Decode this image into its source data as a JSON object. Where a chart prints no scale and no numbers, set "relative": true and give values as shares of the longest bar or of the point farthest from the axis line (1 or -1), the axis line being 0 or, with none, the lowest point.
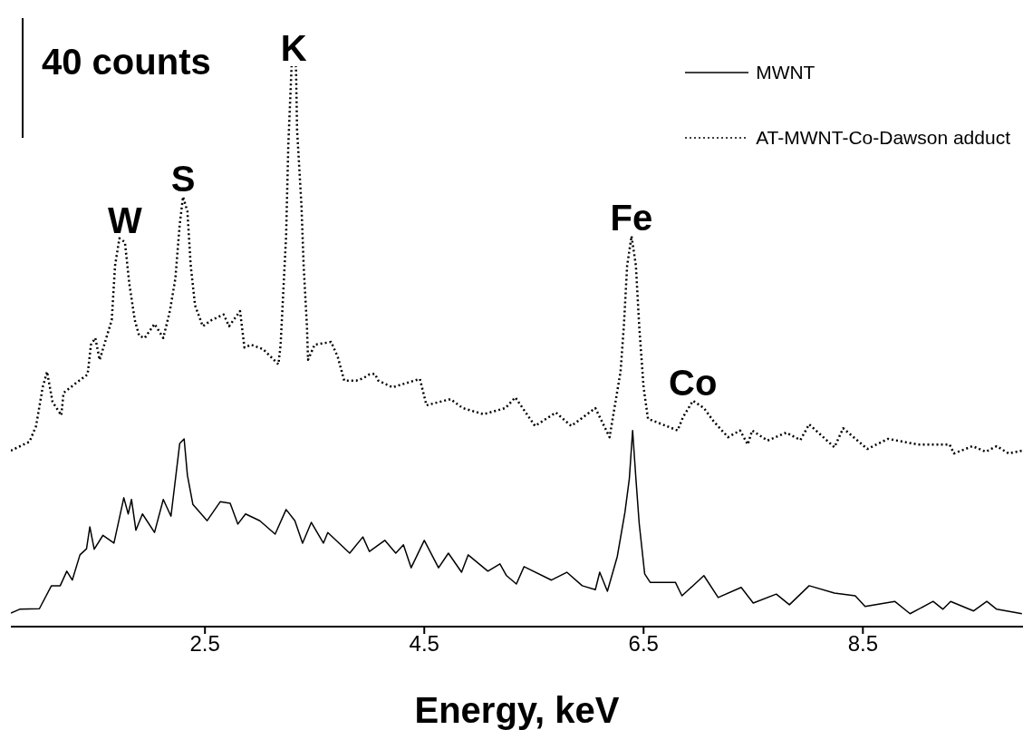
{
  "chart_data": {
    "type": "line",
    "relative": true,
    "xlabel": "Energy, keV",
    "xlim": [
      0.73,
      9.96
    ],
    "xticks": [
      2.5,
      4.5,
      6.5,
      8.5
    ],
    "grid": false,
    "legend": "top right",
    "marker": "none",
    "annotations": [
      "40 counts",
      {
        "text": "W",
        "x": 1.77,
        "y": 0.693
      },
      {
        "text": "S",
        "x": 2.3,
        "y": 0.767
      },
      {
        "text": "K",
        "x": 3.31,
        "y": 1
      },
      {
        "text": "Fe",
        "x": 6.39,
        "y": 0.697
      },
      {
        "text": "Co",
        "x": 6.95,
        "y": 0.403
      }
    ],
    "series": [
      {
        "name": "MWNT",
        "color": "#000000",
        "line_style": "solid",
        "x": [
          0.73,
          0.81,
          0.99,
          1.1,
          1.18,
          1.24,
          1.29,
          1.36,
          1.42,
          1.45,
          1.49,
          1.57,
          1.67,
          1.76,
          1.8,
          1.83,
          1.87,
          1.93,
          2.04,
          2.12,
          2.19,
          2.27,
          2.31,
          2.34,
          2.39,
          2.52,
          2.64,
          2.73,
          2.8,
          2.87,
          3.0,
          3.14,
          3.24,
          3.32,
          3.39,
          3.47,
          3.58,
          3.62,
          3.82,
          3.94,
          4.0,
          4.14,
          4.24,
          4.31,
          4.38,
          4.5,
          4.63,
          4.72,
          4.84,
          4.9,
          5.08,
          5.19,
          5.25,
          5.34,
          5.41,
          5.66,
          5.8,
          5.94,
          6.06,
          6.1,
          6.17,
          6.26,
          6.33,
          6.37,
          6.4,
          6.43,
          6.46,
          6.51,
          6.56,
          6.79,
          6.85,
          7.05,
          7.18,
          7.39,
          7.5,
          7.71,
          7.83,
          8.01,
          8.24,
          8.43,
          8.52,
          8.79,
          8.93,
          9.14,
          9.23,
          9.3,
          9.51,
          9.63,
          9.72,
          9.95
        ],
        "values": [
          0.024,
          0.031,
          0.032,
          0.073,
          0.073,
          0.099,
          0.083,
          0.128,
          0.139,
          0.178,
          0.138,
          0.163,
          0.149,
          0.23,
          0.201,
          0.227,
          0.172,
          0.201,
          0.168,
          0.227,
          0.197,
          0.327,
          0.335,
          0.27,
          0.218,
          0.189,
          0.223,
          0.22,
          0.183,
          0.201,
          0.189,
          0.165,
          0.209,
          0.189,
          0.149,
          0.186,
          0.149,
          0.168,
          0.131,
          0.16,
          0.134,
          0.154,
          0.131,
          0.146,
          0.105,
          0.154,
          0.105,
          0.131,
          0.097,
          0.128,
          0.099,
          0.112,
          0.091,
          0.076,
          0.107,
          0.083,
          0.097,
          0.073,
          0.066,
          0.097,
          0.063,
          0.125,
          0.204,
          0.264,
          0.35,
          0.264,
          0.184,
          0.094,
          0.079,
          0.079,
          0.055,
          0.091,
          0.052,
          0.07,
          0.042,
          0.058,
          0.039,
          0.073,
          0.06,
          0.055,
          0.036,
          0.045,
          0.023,
          0.045,
          0.031,
          0.045,
          0.028,
          0.045,
          0.031,
          0.023
        ]
      },
      {
        "name": "AT-MWNT-Co-Dawson adduct",
        "color": "#000000",
        "line_style": "dotted",
        "x": [
          0.73,
          0.9,
          0.96,
          1.02,
          1.06,
          1.11,
          1.19,
          1.21,
          1.32,
          1.43,
          1.46,
          1.5,
          1.54,
          1.6,
          1.65,
          1.68,
          1.72,
          1.77,
          1.81,
          1.86,
          1.9,
          1.95,
          2.04,
          2.12,
          2.18,
          2.23,
          2.27,
          2.3,
          2.34,
          2.37,
          2.41,
          2.48,
          2.56,
          2.67,
          2.72,
          2.82,
          2.86,
          2.92,
          3.03,
          3.17,
          3.19,
          3.24,
          3.26,
          3.29,
          3.33,
          3.34,
          3.38,
          3.4,
          3.43,
          3.44,
          3.5,
          3.65,
          3.71,
          3.77,
          3.88,
          3.94,
          4.0,
          4.05,
          4.08,
          4.21,
          4.46,
          4.52,
          4.74,
          4.85,
          5.04,
          5.24,
          5.33,
          5.51,
          5.7,
          5.84,
          6.06,
          6.19,
          6.23,
          6.29,
          6.32,
          6.35,
          6.39,
          6.43,
          6.46,
          6.5,
          6.54,
          6.81,
          6.86,
          6.95,
          7.05,
          7.14,
          7.27,
          7.38,
          7.45,
          7.49,
          7.63,
          7.8,
          7.93,
          8.01,
          8.24,
          8.32,
          8.54,
          8.73,
          9.0,
          9.29,
          9.33,
          9.5,
          9.62,
          9.72,
          9.83,
          9.95
        ],
        "values": [
          0.314,
          0.33,
          0.358,
          0.427,
          0.455,
          0.401,
          0.377,
          0.417,
          0.434,
          0.45,
          0.503,
          0.515,
          0.476,
          0.515,
          0.547,
          0.644,
          0.693,
          0.686,
          0.612,
          0.547,
          0.519,
          0.515,
          0.54,
          0.515,
          0.563,
          0.621,
          0.718,
          0.767,
          0.741,
          0.644,
          0.573,
          0.536,
          0.547,
          0.557,
          0.536,
          0.563,
          0.498,
          0.503,
          0.495,
          0.468,
          0.503,
          0.697,
          0.859,
          1,
          1,
          0.887,
          0.751,
          0.644,
          0.536,
          0.476,
          0.503,
          0.508,
          0.482,
          0.439,
          0.439,
          0.443,
          0.45,
          0.451,
          0.439,
          0.427,
          0.442,
          0.395,
          0.406,
          0.39,
          0.379,
          0.39,
          0.409,
          0.358,
          0.382,
          0.358,
          0.39,
          0.338,
          0.385,
          0.455,
          0.536,
          0.644,
          0.697,
          0.644,
          0.536,
          0.427,
          0.371,
          0.35,
          0.374,
          0.403,
          0.39,
          0.366,
          0.338,
          0.35,
          0.325,
          0.35,
          0.332,
          0.346,
          0.333,
          0.361,
          0.32,
          0.354,
          0.317,
          0.335,
          0.325,
          0.325,
          0.309,
          0.322,
          0.312,
          0.322,
          0.309,
          0.314
        ]
      }
    ]
  }
}
